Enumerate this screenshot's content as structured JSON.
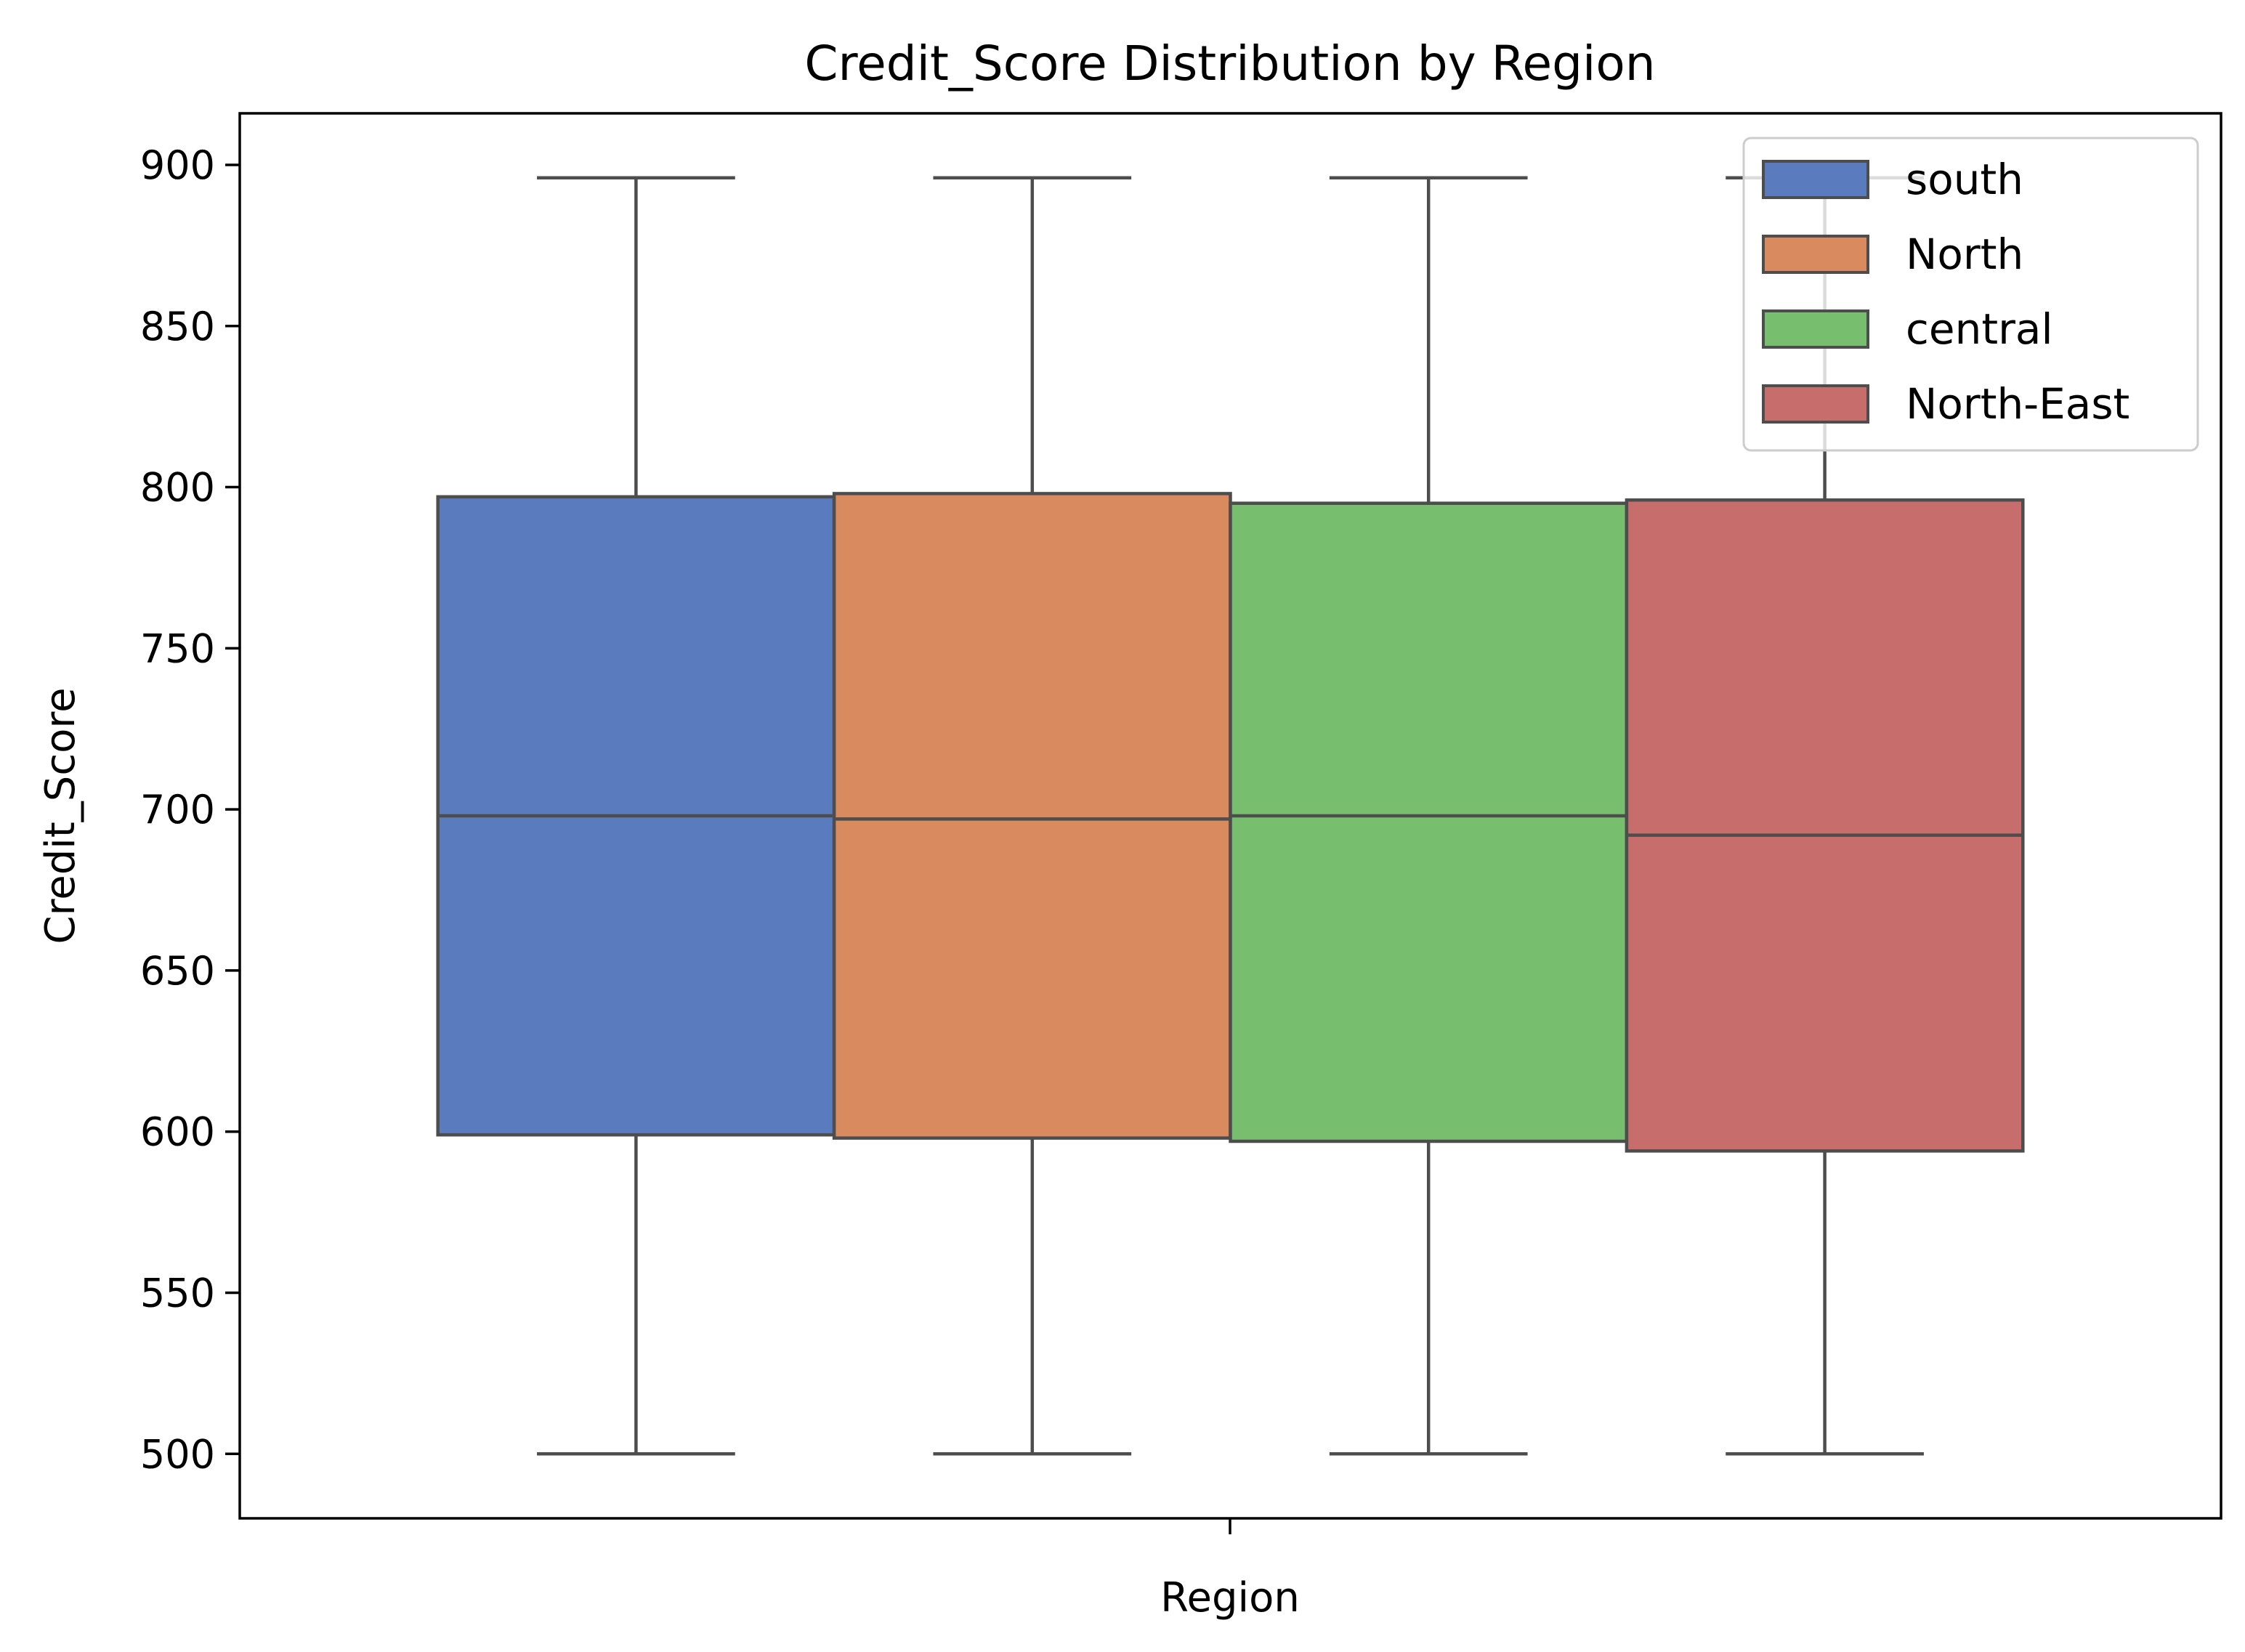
{
  "chart_data": {
    "type": "box",
    "title": "Credit_Score Distribution by Region",
    "xlabel": "Region",
    "ylabel": "Credit_Score",
    "ylim": [
      480,
      916
    ],
    "yticks": [
      500,
      550,
      600,
      650,
      700,
      750,
      800,
      850,
      900
    ],
    "grid": false,
    "legend_position": "top-right",
    "box_edge_color": "#4d4d4d",
    "series": [
      {
        "name": "south",
        "color": "#5b7bbf",
        "whisker_low": 500,
        "q1": 599,
        "median": 698,
        "q3": 797,
        "whisker_high": 896
      },
      {
        "name": "North",
        "color": "#d98b5f",
        "whisker_low": 500,
        "q1": 598,
        "median": 697,
        "q3": 798,
        "whisker_high": 896
      },
      {
        "name": "central",
        "color": "#77bf6f",
        "whisker_low": 500,
        "q1": 597,
        "median": 698,
        "q3": 795,
        "whisker_high": 896
      },
      {
        "name": "North-East",
        "color": "#c76e6d",
        "whisker_low": 500,
        "q1": 594,
        "median": 692,
        "q3": 796,
        "whisker_high": 896
      }
    ]
  }
}
